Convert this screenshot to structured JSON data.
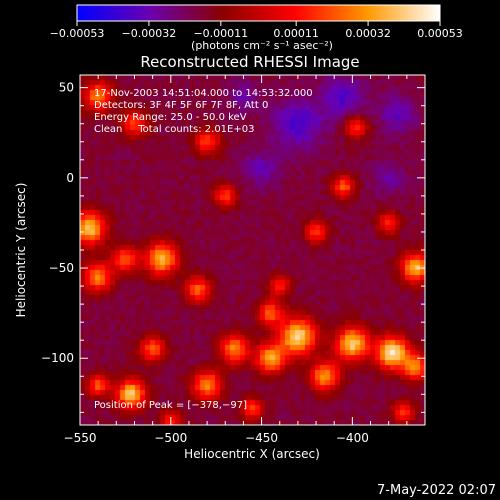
{
  "chart_data": {
    "type": "heatmap",
    "title": "Reconstructed RHESSI Image",
    "xlabel": "Heliocentric X (arcsec)",
    "ylabel": "Heliocentric Y (arcsec)",
    "xlim": [
      -550,
      -360
    ],
    "ylim": [
      -137,
      57
    ],
    "x_ticks": [
      -550,
      -500,
      -450,
      -400
    ],
    "x_tick_labels": [
      "−550",
      "−500",
      "−450",
      "−400"
    ],
    "y_ticks": [
      50,
      0,
      -50,
      -100
    ],
    "y_tick_labels": [
      "50",
      "0",
      "−50",
      "−100"
    ],
    "colorbar": {
      "range": [
        -0.00053,
        0.00053
      ],
      "ticks": [
        -0.00053,
        -0.00032,
        -0.00011,
        0.00011,
        0.00032,
        0.00053
      ],
      "tick_labels": [
        "−0.00053",
        "−0.00032",
        "−0.00011",
        "0.00011",
        "0.00032",
        "0.00053"
      ],
      "units_label": "(photons cm⁻² s⁻¹ asec⁻²)",
      "colors": [
        "#0000ff",
        "#6a00b0",
        "#8a0000",
        "#ff0000",
        "#ff9900",
        "#ffffff"
      ]
    },
    "annotations": [
      "17-Nov-2003 14:51:04.000 to 14:53:32.000",
      "Detectors: 3F 4F 5F 6F 7F 8F, Att 0",
      "Energy Range: 25.0 - 50.0 keV",
      "Clean     Total counts: 2.01E+03"
    ],
    "peak_label": "Position of Peak = [−378,−97]",
    "peak": [
      -378,
      -97
    ],
    "sources": [
      {
        "x": -378,
        "y": -97,
        "r": 9,
        "v": 1.0
      },
      {
        "x": -400,
        "y": -92,
        "r": 9,
        "v": 0.92
      },
      {
        "x": -430,
        "y": -88,
        "r": 10,
        "v": 0.95
      },
      {
        "x": -445,
        "y": -100,
        "r": 8,
        "v": 0.8
      },
      {
        "x": -415,
        "y": -110,
        "r": 8,
        "v": 0.75
      },
      {
        "x": -465,
        "y": -95,
        "r": 8,
        "v": 0.7
      },
      {
        "x": -480,
        "y": -115,
        "r": 8,
        "v": 0.72
      },
      {
        "x": -510,
        "y": -95,
        "r": 7,
        "v": 0.6
      },
      {
        "x": -522,
        "y": -120,
        "r": 8,
        "v": 0.9
      },
      {
        "x": -540,
        "y": -115,
        "r": 6,
        "v": 0.6
      },
      {
        "x": -545,
        "y": -28,
        "r": 9,
        "v": 0.88
      },
      {
        "x": -540,
        "y": -55,
        "r": 8,
        "v": 0.7
      },
      {
        "x": -525,
        "y": -45,
        "r": 7,
        "v": 0.6
      },
      {
        "x": -505,
        "y": -45,
        "r": 9,
        "v": 0.82
      },
      {
        "x": -485,
        "y": -62,
        "r": 7,
        "v": 0.6
      },
      {
        "x": -540,
        "y": 45,
        "r": 8,
        "v": 0.7
      },
      {
        "x": -520,
        "y": 30,
        "r": 7,
        "v": 0.55
      },
      {
        "x": -480,
        "y": 20,
        "r": 7,
        "v": 0.55
      },
      {
        "x": -470,
        "y": -10,
        "r": 6,
        "v": 0.55
      },
      {
        "x": -420,
        "y": -30,
        "r": 6,
        "v": 0.55
      },
      {
        "x": -405,
        "y": -5,
        "r": 6,
        "v": 0.6
      },
      {
        "x": -398,
        "y": 28,
        "r": 6,
        "v": 0.55
      },
      {
        "x": -380,
        "y": -25,
        "r": 6,
        "v": 0.5
      },
      {
        "x": -365,
        "y": -50,
        "r": 8,
        "v": 0.85
      },
      {
        "x": -440,
        "y": -60,
        "r": 6,
        "v": 0.45
      },
      {
        "x": -365,
        "y": -105,
        "r": 7,
        "v": 0.7
      },
      {
        "x": -372,
        "y": -130,
        "r": 6,
        "v": 0.5
      },
      {
        "x": -455,
        "y": -128,
        "r": 6,
        "v": 0.55
      },
      {
        "x": -500,
        "y": -135,
        "r": 6,
        "v": 0.5
      },
      {
        "x": -445,
        "y": -75,
        "r": 7,
        "v": 0.6
      }
    ],
    "sinks": [
      {
        "x": -430,
        "y": 30,
        "r": 14,
        "v": 1.0
      },
      {
        "x": -405,
        "y": 45,
        "r": 12,
        "v": 0.9
      },
      {
        "x": -375,
        "y": 35,
        "r": 10,
        "v": 0.8
      },
      {
        "x": -450,
        "y": 5,
        "r": 10,
        "v": 0.7
      },
      {
        "x": -380,
        "y": 0,
        "r": 9,
        "v": 0.6
      },
      {
        "x": -460,
        "y": 45,
        "r": 8,
        "v": 0.6
      }
    ]
  },
  "footer": {
    "date": "7-May-2022 02:07"
  }
}
